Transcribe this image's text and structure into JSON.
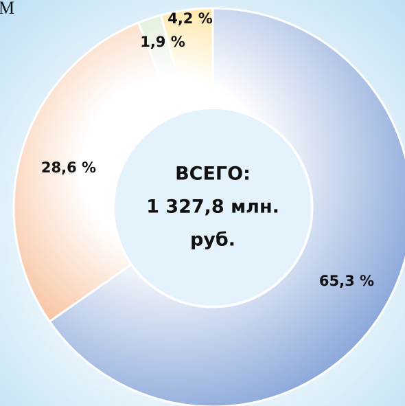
{
  "chart_data": {
    "type": "pie",
    "title": "М",
    "center_text": [
      "ВСЕГО:",
      "1 327,8 млн.",
      "руб."
    ],
    "values": [
      65.3,
      28.6,
      1.9,
      4.2
    ],
    "value_labels": [
      "65,3 %",
      "28,6 %",
      "1,9 %",
      "4,2 %"
    ],
    "colors": [
      "#8eaadb",
      "#f4a672",
      "#b5d6a0",
      "#ffc83d"
    ]
  }
}
